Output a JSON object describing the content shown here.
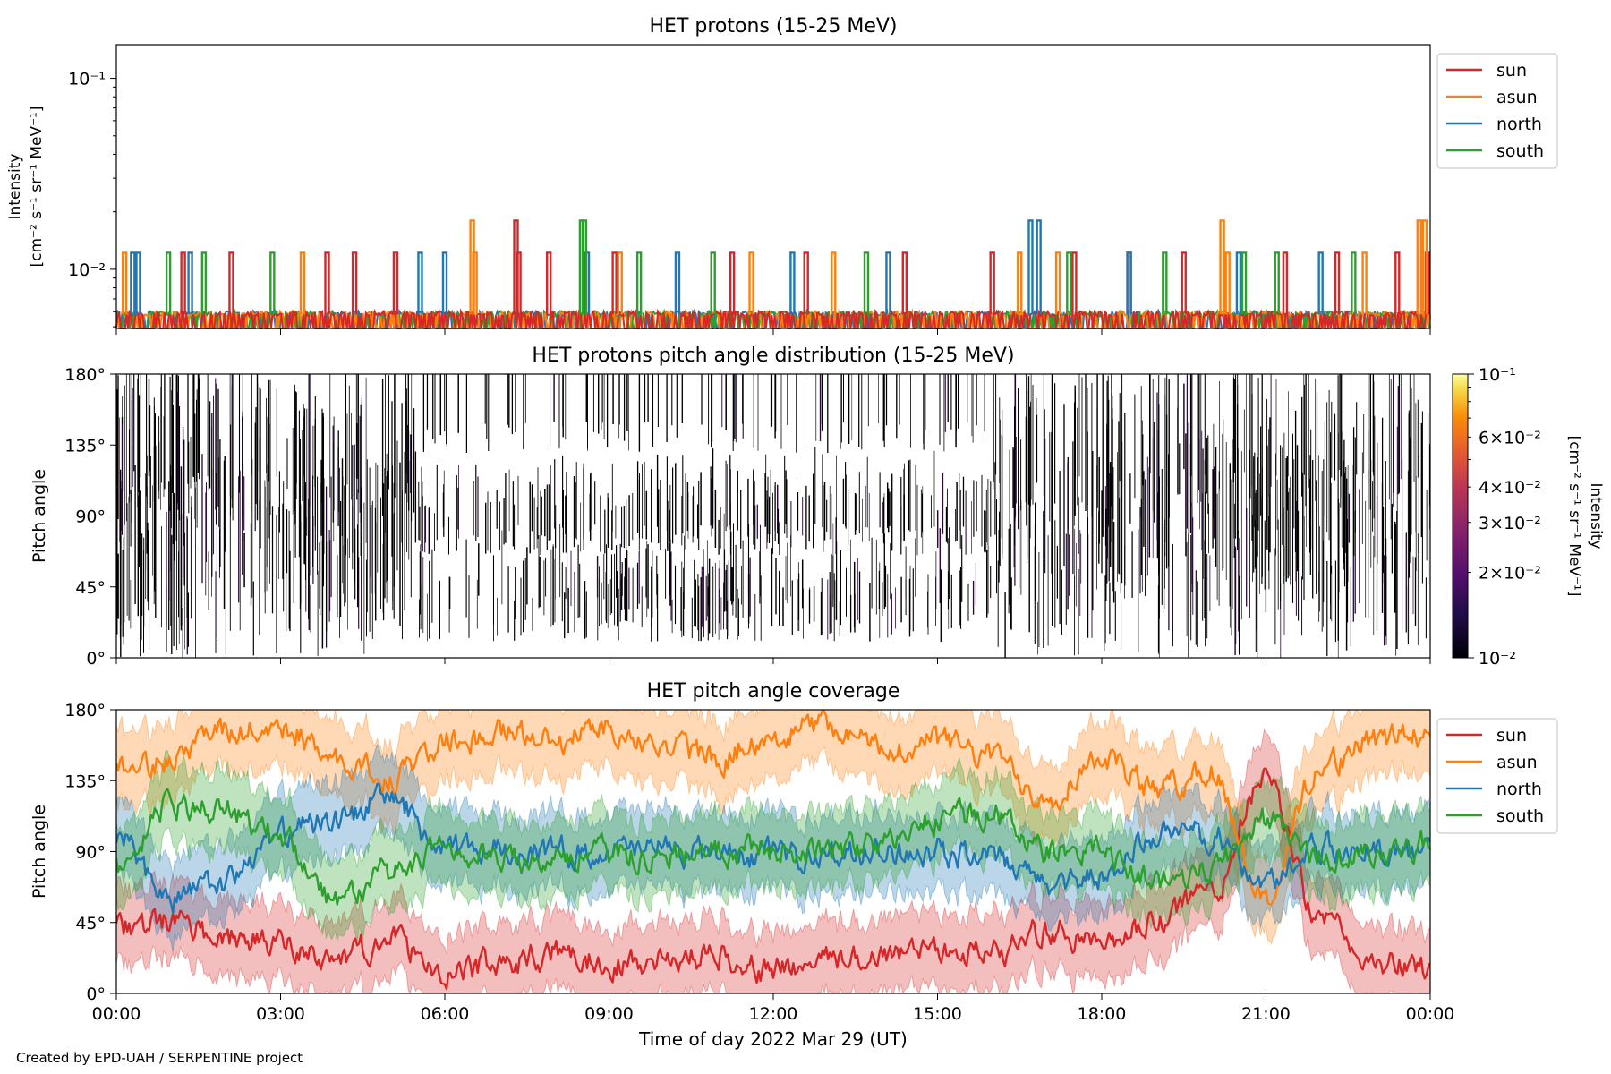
{
  "footer": "Created by EPD-UAH / SERPENTINE project",
  "colors": {
    "sun": "#d62728",
    "asun": "#ff7f0e",
    "north": "#1f77b4",
    "south": "#2ca02c"
  },
  "chart_data": [
    {
      "type": "line",
      "title": "HET protons (15-25 MeV)",
      "ylabel": [
        "Intensity",
        "[cm⁻² s⁻¹ sr⁻¹ MeV⁻¹]"
      ],
      "yscale": "log",
      "ylim": [
        0.0049,
        0.15
      ],
      "yticks": [
        {
          "value": 0.1,
          "label": "10⁻¹"
        },
        {
          "value": 0.01,
          "label": "10⁻²"
        }
      ],
      "xlim": [
        0,
        24
      ],
      "legend": "top-right",
      "series": [
        {
          "name": "sun",
          "baseline": 0.0058,
          "spikes": [
            {
              "x": 1.22,
              "y": 0.0122
            },
            {
              "x": 2.1,
              "y": 0.0122
            },
            {
              "x": 3.85,
              "y": 0.0122
            },
            {
              "x": 4.35,
              "y": 0.0122
            },
            {
              "x": 5.1,
              "y": 0.0122
            },
            {
              "x": 7.3,
              "y": 0.018
            },
            {
              "x": 7.35,
              "y": 0.0122
            },
            {
              "x": 7.9,
              "y": 0.0122
            },
            {
              "x": 9.1,
              "y": 0.0122
            },
            {
              "x": 11.25,
              "y": 0.0122
            },
            {
              "x": 12.6,
              "y": 0.0122
            },
            {
              "x": 14.4,
              "y": 0.0122
            },
            {
              "x": 16.0,
              "y": 0.0122
            },
            {
              "x": 17.5,
              "y": 0.0122
            },
            {
              "x": 18.5,
              "y": 0.0122
            },
            {
              "x": 19.5,
              "y": 0.0122
            },
            {
              "x": 21.35,
              "y": 0.0122
            },
            {
              "x": 22.3,
              "y": 0.0122
            },
            {
              "x": 23.4,
              "y": 0.0122
            },
            {
              "x": 23.95,
              "y": 0.0122
            }
          ]
        },
        {
          "name": "asun",
          "baseline": 0.0058,
          "spikes": [
            {
              "x": 0.15,
              "y": 0.0122
            },
            {
              "x": 3.4,
              "y": 0.0122
            },
            {
              "x": 6.5,
              "y": 0.018
            },
            {
              "x": 6.55,
              "y": 0.0122
            },
            {
              "x": 9.2,
              "y": 0.0122
            },
            {
              "x": 11.6,
              "y": 0.0122
            },
            {
              "x": 13.1,
              "y": 0.0122
            },
            {
              "x": 16.5,
              "y": 0.0122
            },
            {
              "x": 17.2,
              "y": 0.0122
            },
            {
              "x": 20.2,
              "y": 0.018
            },
            {
              "x": 20.3,
              "y": 0.0122
            },
            {
              "x": 22.8,
              "y": 0.0122
            },
            {
              "x": 23.8,
              "y": 0.018
            },
            {
              "x": 23.9,
              "y": 0.018
            }
          ]
        },
        {
          "name": "north",
          "baseline": 0.0058,
          "spikes": [
            {
              "x": 0.3,
              "y": 0.0122
            },
            {
              "x": 0.4,
              "y": 0.0122
            },
            {
              "x": 1.35,
              "y": 0.0122
            },
            {
              "x": 5.55,
              "y": 0.0122
            },
            {
              "x": 6.0,
              "y": 0.0122
            },
            {
              "x": 8.6,
              "y": 0.0122
            },
            {
              "x": 10.25,
              "y": 0.0122
            },
            {
              "x": 12.35,
              "y": 0.0122
            },
            {
              "x": 14.1,
              "y": 0.0122
            },
            {
              "x": 16.7,
              "y": 0.018
            },
            {
              "x": 16.85,
              "y": 0.018
            },
            {
              "x": 18.5,
              "y": 0.0122
            },
            {
              "x": 20.5,
              "y": 0.0122
            },
            {
              "x": 22.0,
              "y": 0.0122
            }
          ]
        },
        {
          "name": "south",
          "baseline": 0.0058,
          "spikes": [
            {
              "x": 0.95,
              "y": 0.0122
            },
            {
              "x": 1.6,
              "y": 0.0122
            },
            {
              "x": 2.85,
              "y": 0.0122
            },
            {
              "x": 8.5,
              "y": 0.018
            },
            {
              "x": 8.55,
              "y": 0.018
            },
            {
              "x": 9.55,
              "y": 0.0122
            },
            {
              "x": 10.9,
              "y": 0.0122
            },
            {
              "x": 13.7,
              "y": 0.0122
            },
            {
              "x": 17.4,
              "y": 0.0122
            },
            {
              "x": 19.15,
              "y": 0.0122
            },
            {
              "x": 20.6,
              "y": 0.0122
            },
            {
              "x": 21.2,
              "y": 0.0122
            },
            {
              "x": 22.6,
              "y": 0.0122
            }
          ]
        }
      ]
    },
    {
      "type": "heatmap",
      "title": "HET protons pitch angle distribution (15-25 MeV)",
      "ylabel": "Pitch angle",
      "ylim": [
        0,
        180
      ],
      "yticks": [
        "0°",
        "45°",
        "90°",
        "135°",
        "180°"
      ],
      "xlim": [
        0,
        24
      ],
      "note_values": "sparse vertical streaks near colormap minimum",
      "colorbar": {
        "label": [
          "Intensity",
          "[cm⁻² s⁻¹ sr⁻¹ MeV⁻¹]"
        ],
        "scale": "log",
        "range": [
          0.01,
          0.1
        ],
        "colormap": "inferno",
        "ticks": [
          {
            "value": 0.1,
            "label": "10⁻¹"
          },
          {
            "value": 0.06,
            "label": "6×10⁻²"
          },
          {
            "value": 0.04,
            "label": "4×10⁻²"
          },
          {
            "value": 0.03,
            "label": "3×10⁻²"
          },
          {
            "value": 0.02,
            "label": "2×10⁻²"
          },
          {
            "value": 0.01,
            "label": "10⁻²"
          }
        ]
      }
    },
    {
      "type": "line",
      "title": "HET pitch angle coverage",
      "ylabel": "Pitch angle",
      "xlabel": "Time of day 2022 Mar 29 (UT)",
      "ylim": [
        0,
        180
      ],
      "yticks": [
        "0°",
        "45°",
        "90°",
        "135°",
        "180°"
      ],
      "xlim": [
        0,
        24
      ],
      "xticks": [
        "00:00",
        "03:00",
        "06:00",
        "09:00",
        "12:00",
        "15:00",
        "18:00",
        "21:00",
        "00:00"
      ],
      "band_halfwidth": 22,
      "legend": "top-right",
      "series": [
        {
          "name": "sun",
          "x": [
            0,
            1,
            2,
            3,
            4,
            5,
            6,
            7,
            8,
            9,
            10,
            11,
            12,
            13,
            14,
            15,
            16,
            17,
            18,
            19,
            20,
            21,
            22,
            23,
            24
          ],
          "y": [
            40,
            45,
            35,
            30,
            20,
            35,
            10,
            20,
            25,
            20,
            22,
            25,
            15,
            20,
            25,
            30,
            25,
            40,
            30,
            45,
            65,
            135,
            45,
            20,
            15
          ]
        },
        {
          "name": "asun",
          "x": [
            0,
            1,
            2,
            3,
            4,
            5,
            6,
            7,
            8,
            9,
            10,
            11,
            12,
            13,
            14,
            15,
            16,
            17,
            18,
            19,
            20,
            21,
            22,
            23,
            24
          ],
          "y": [
            140,
            150,
            165,
            170,
            150,
            135,
            160,
            165,
            160,
            170,
            155,
            150,
            165,
            170,
            155,
            160,
            150,
            125,
            150,
            130,
            140,
            60,
            145,
            160,
            165
          ]
        },
        {
          "name": "north",
          "x": [
            0,
            1,
            2,
            3,
            4,
            5,
            6,
            7,
            8,
            9,
            10,
            11,
            12,
            13,
            14,
            15,
            16,
            17,
            18,
            19,
            20,
            21,
            22,
            23,
            24
          ],
          "y": [
            100,
            60,
            70,
            100,
            110,
            125,
            90,
            92,
            90,
            90,
            92,
            88,
            88,
            88,
            90,
            90,
            85,
            70,
            75,
            100,
            100,
            70,
            95,
            90,
            90
          ]
        },
        {
          "name": "south",
          "x": [
            0,
            1,
            2,
            3,
            4,
            5,
            6,
            7,
            8,
            9,
            10,
            11,
            12,
            13,
            14,
            15,
            16,
            17,
            18,
            19,
            20,
            21,
            22,
            23,
            24
          ],
          "y": [
            80,
            120,
            115,
            100,
            60,
            75,
            90,
            85,
            88,
            88,
            88,
            90,
            92,
            90,
            95,
            110,
            115,
            90,
            90,
            70,
            80,
            110,
            85,
            90,
            95
          ]
        }
      ]
    }
  ]
}
